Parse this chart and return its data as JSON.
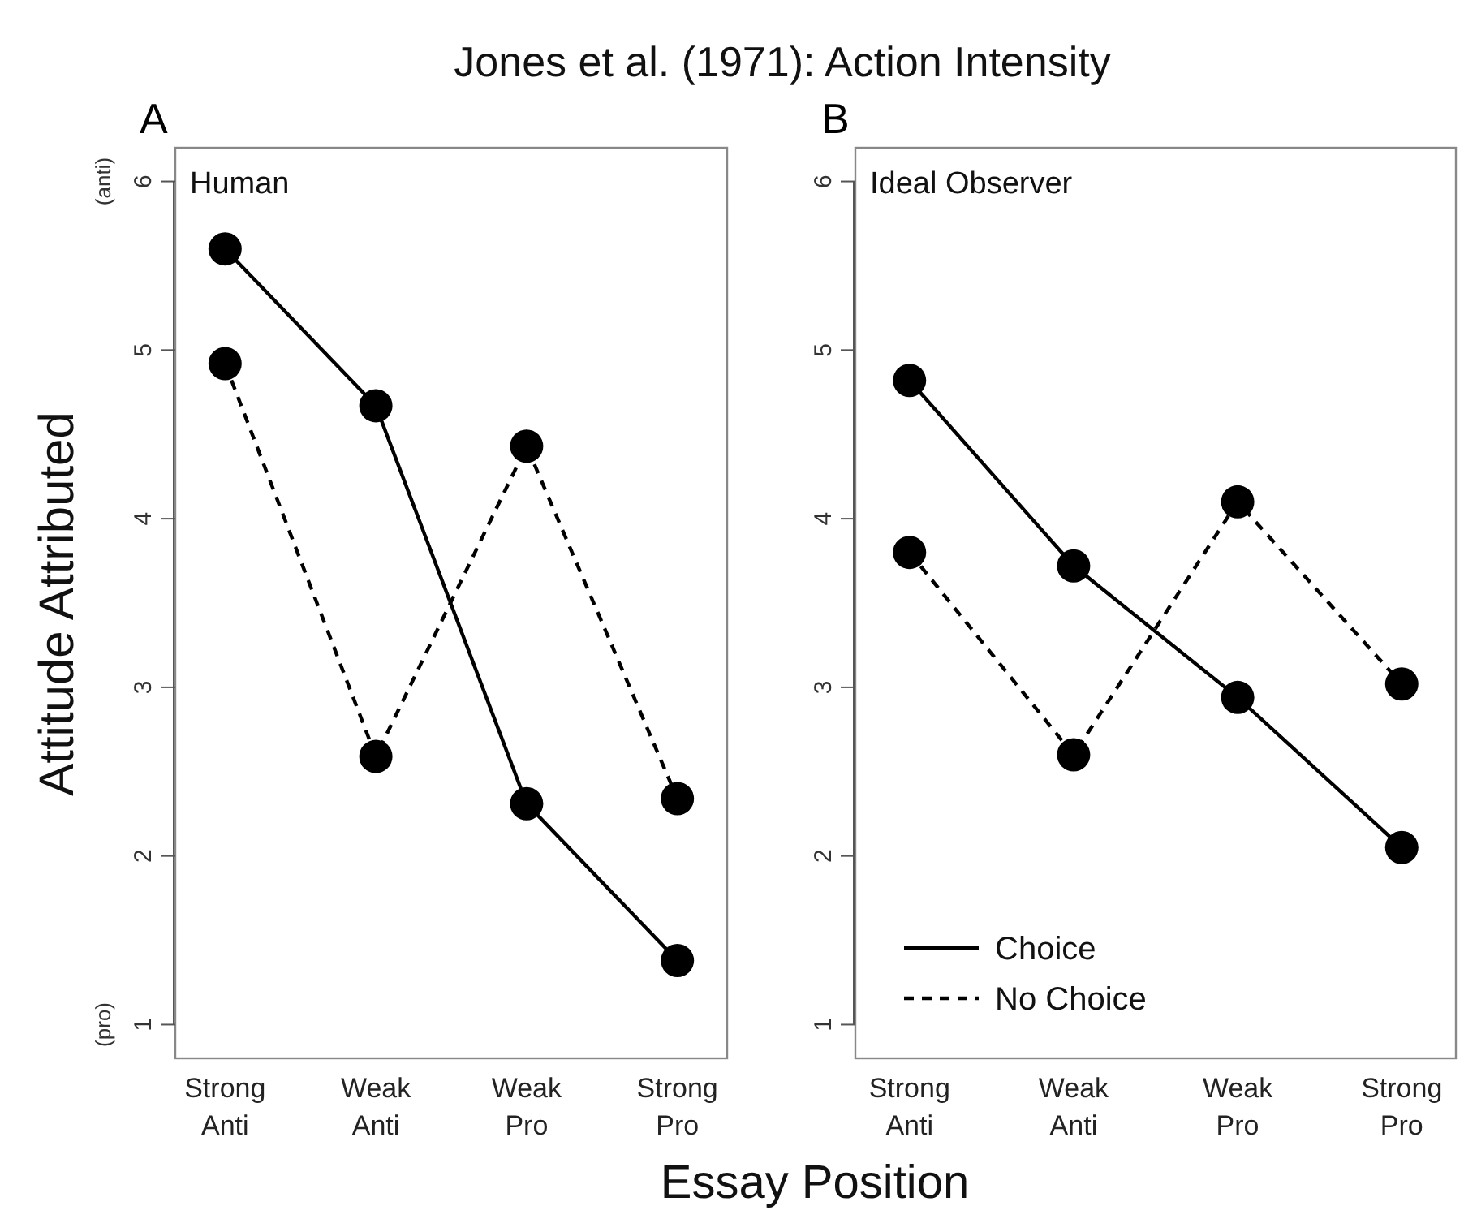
{
  "chart_data": [
    {
      "type": "line",
      "title": "Jones et al. (1971): Action Intensity",
      "subtitle": "Human",
      "xlabel": "Essay Position",
      "ylabel": "Attitude Attributed",
      "annotations": [
        "A",
        "(anti)",
        "(pro)"
      ],
      "categories": [
        "Strong Anti",
        "Weak Anti",
        "Weak Pro",
        "Strong Pro"
      ],
      "ylim": [
        0.8,
        6.2
      ],
      "yticks": [
        1,
        2,
        3,
        4,
        5,
        6
      ],
      "marker": "circle",
      "legend": false,
      "series": [
        {
          "color": "#000000",
          "line_style": "solid",
          "values": [
            5.6,
            4.67,
            2.31,
            1.38
          ]
        },
        {
          "color": "#000000",
          "line_style": "dashed",
          "values": [
            4.92,
            2.59,
            4.43,
            2.34
          ]
        }
      ]
    },
    {
      "type": "line",
      "subtitle": "Ideal Observer",
      "annotations": [
        "B"
      ],
      "categories": [
        "Strong Anti",
        "Weak Anti",
        "Weak Pro",
        "Strong Pro"
      ],
      "ylim": [
        0.8,
        6.2
      ],
      "yticks": [
        1,
        2,
        3,
        4,
        5,
        6
      ],
      "marker": "circle",
      "legend": "bottom left",
      "series": [
        {
          "name": "Choice",
          "color": "#000000",
          "line_style": "solid",
          "values": [
            4.82,
            3.72,
            2.94,
            2.05
          ]
        },
        {
          "name": "No Choice",
          "color": "#000000",
          "line_style": "dashed",
          "values": [
            3.8,
            2.6,
            4.1,
            3.02
          ]
        }
      ]
    }
  ]
}
